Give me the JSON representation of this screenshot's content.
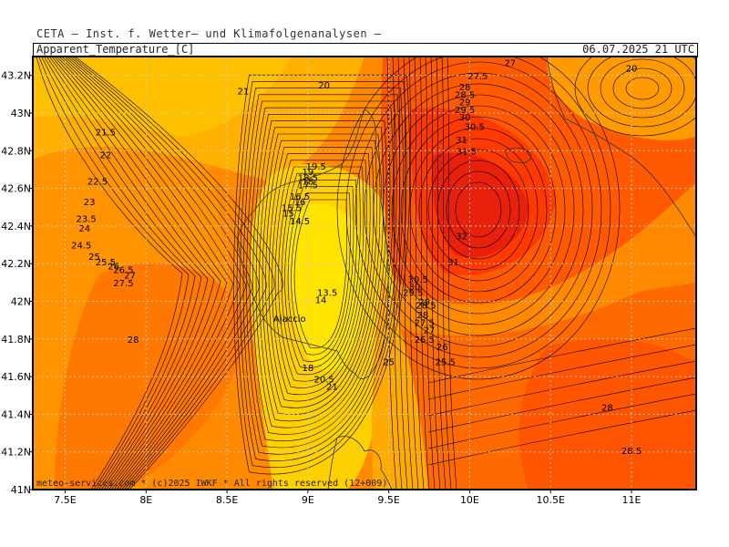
{
  "header": {
    "institute": "CETA — Inst. f. Wetter— und Klimafolgenanalysen —",
    "parameter": "Apparent_Temperature_[C]",
    "valid_time": "06.07.2025 21 UTC"
  },
  "footer": {
    "credit": "meteo-services.com * (c)2025 IWKF * All rights reserved (12+009)"
  },
  "map": {
    "place_label": "Ajaccio",
    "colors": {
      "cool_yellow": "#ffe000",
      "yellow_orange": "#ffc000",
      "orange": "#ff9a00",
      "dark_orange": "#ff7000",
      "red_orange": "#ff4a00",
      "red": "#f02a0a",
      "contour": "#000000",
      "grid": "#bbbbbb"
    }
  },
  "chart_data": {
    "type": "contour_map",
    "title": "Apparent_Temperature_[C]",
    "valid_time": "06.07.2025 21 UTC",
    "units": "C",
    "lon_range": [
      7.3,
      11.4
    ],
    "lat_range": [
      41.0,
      43.3
    ],
    "lon_ticks": [
      "7.5E",
      "8E",
      "8.5E",
      "9E",
      "9.5E",
      "10E",
      "10.5E",
      "11E"
    ],
    "lon_tick_values": [
      7.5,
      8.0,
      8.5,
      9.0,
      9.5,
      10.0,
      10.5,
      11.0
    ],
    "lat_ticks": [
      "43.2N",
      "43N",
      "42.8N",
      "42.6N",
      "42.4N",
      "42.2N",
      "42N",
      "41.8N",
      "41.6N",
      "41.4N",
      "41.2N",
      "41N"
    ],
    "lat_tick_values": [
      43.2,
      43.0,
      42.8,
      42.6,
      42.4,
      42.2,
      42.0,
      41.8,
      41.6,
      41.4,
      41.2,
      41.0
    ],
    "grid": true,
    "contour_labels": [
      {
        "text": "20",
        "lon": 9.1,
        "lat": 43.13
      },
      {
        "text": "21",
        "lon": 8.6,
        "lat": 43.1
      },
      {
        "text": "21.5",
        "lon": 7.75,
        "lat": 42.88
      },
      {
        "text": "22",
        "lon": 7.75,
        "lat": 42.76
      },
      {
        "text": "22.5",
        "lon": 7.7,
        "lat": 42.62
      },
      {
        "text": "23",
        "lon": 7.65,
        "lat": 42.51
      },
      {
        "text": "23.5",
        "lon": 7.63,
        "lat": 42.42
      },
      {
        "text": "24",
        "lon": 7.62,
        "lat": 42.37
      },
      {
        "text": "24.5",
        "lon": 7.6,
        "lat": 42.28
      },
      {
        "text": "25",
        "lon": 7.68,
        "lat": 42.22
      },
      {
        "text": "25.5",
        "lon": 7.75,
        "lat": 42.19
      },
      {
        "text": "26",
        "lon": 7.8,
        "lat": 42.17
      },
      {
        "text": "26.5",
        "lon": 7.86,
        "lat": 42.15
      },
      {
        "text": "27",
        "lon": 7.9,
        "lat": 42.12
      },
      {
        "text": "27.5",
        "lon": 7.86,
        "lat": 42.08
      },
      {
        "text": "28",
        "lon": 7.92,
        "lat": 41.78
      },
      {
        "text": "19.5",
        "lon": 9.05,
        "lat": 42.7
      },
      {
        "text": "19",
        "lon": 9.0,
        "lat": 42.67
      },
      {
        "text": "18.5",
        "lon": 9.0,
        "lat": 42.64
      },
      {
        "text": "18",
        "lon": 9.0,
        "lat": 42.62
      },
      {
        "text": "17.5",
        "lon": 9.0,
        "lat": 42.6
      },
      {
        "text": "16.5",
        "lon": 8.95,
        "lat": 42.54
      },
      {
        "text": "16",
        "lon": 8.95,
        "lat": 42.51
      },
      {
        "text": "15.5",
        "lon": 8.9,
        "lat": 42.48
      },
      {
        "text": "15",
        "lon": 8.88,
        "lat": 42.45
      },
      {
        "text": "14.5",
        "lon": 8.95,
        "lat": 42.41
      },
      {
        "text": "13.5",
        "lon": 9.12,
        "lat": 42.03
      },
      {
        "text": "14",
        "lon": 9.08,
        "lat": 41.99
      },
      {
        "text": "18",
        "lon": 9.0,
        "lat": 41.63
      },
      {
        "text": "20.5",
        "lon": 9.1,
        "lat": 41.57
      },
      {
        "text": "21",
        "lon": 9.15,
        "lat": 41.53
      },
      {
        "text": "25",
        "lon": 9.5,
        "lat": 41.66
      },
      {
        "text": "27",
        "lon": 10.25,
        "lat": 43.25
      },
      {
        "text": "27.5",
        "lon": 10.05,
        "lat": 43.18
      },
      {
        "text": "28",
        "lon": 9.97,
        "lat": 43.12
      },
      {
        "text": "28.5",
        "lon": 9.97,
        "lat": 43.08
      },
      {
        "text": "29",
        "lon": 9.97,
        "lat": 43.04
      },
      {
        "text": "29.5",
        "lon": 9.97,
        "lat": 43.0
      },
      {
        "text": "30",
        "lon": 9.97,
        "lat": 42.96
      },
      {
        "text": "30.5",
        "lon": 10.03,
        "lat": 42.91
      },
      {
        "text": "31",
        "lon": 9.95,
        "lat": 42.84
      },
      {
        "text": "31.5",
        "lon": 9.98,
        "lat": 42.78
      },
      {
        "text": "32",
        "lon": 9.95,
        "lat": 42.33
      },
      {
        "text": "31",
        "lon": 9.9,
        "lat": 42.19
      },
      {
        "text": "30.5",
        "lon": 9.68,
        "lat": 42.1
      },
      {
        "text": "30",
        "lon": 9.66,
        "lat": 42.06
      },
      {
        "text": "29.5",
        "lon": 9.65,
        "lat": 42.03
      },
      {
        "text": "29",
        "lon": 9.72,
        "lat": 41.98
      },
      {
        "text": "28.5",
        "lon": 9.73,
        "lat": 41.96
      },
      {
        "text": "28",
        "lon": 9.71,
        "lat": 41.91
      },
      {
        "text": "27.5",
        "lon": 9.72,
        "lat": 41.87
      },
      {
        "text": "27",
        "lon": 9.75,
        "lat": 41.83
      },
      {
        "text": "26.5",
        "lon": 9.72,
        "lat": 41.78
      },
      {
        "text": "26",
        "lon": 9.83,
        "lat": 41.74
      },
      {
        "text": "25.5",
        "lon": 9.85,
        "lat": 41.66
      },
      {
        "text": "20",
        "lon": 11.0,
        "lat": 43.22
      },
      {
        "text": "28",
        "lon": 10.85,
        "lat": 41.42
      },
      {
        "text": "28.5",
        "lon": 11.0,
        "lat": 41.19
      }
    ]
  }
}
